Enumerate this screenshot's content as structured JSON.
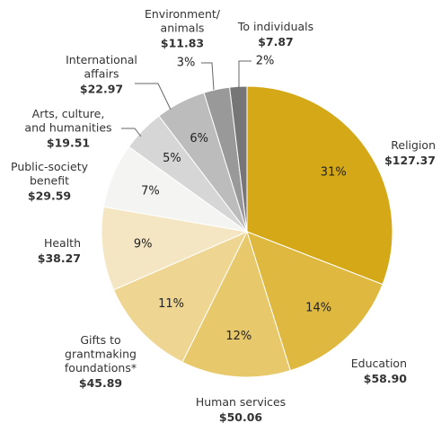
{
  "chart_data": {
    "type": "pie",
    "categories": [
      [
        "Religion"
      ],
      [
        "Education"
      ],
      [
        "Human services"
      ],
      [
        "Gifts to",
        "grantmaking",
        "foundations*"
      ],
      [
        "Health"
      ],
      [
        "Public-society",
        "benefit"
      ],
      [
        "Arts, culture,",
        "and humanities"
      ],
      [
        "International",
        "affairs"
      ],
      [
        "Environment/",
        "animals"
      ],
      [
        "To individuals"
      ]
    ],
    "values": [
      127.37,
      58.9,
      50.06,
      45.89,
      38.27,
      29.59,
      19.51,
      22.97,
      11.83,
      7.87
    ],
    "value_labels": [
      "$127.37",
      "$58.90",
      "$50.06",
      "$45.89",
      "$38.27",
      "$29.59",
      "$19.51",
      "$22.97",
      "$11.83",
      "$7.87"
    ],
    "percent_labels": [
      "31%",
      "14%",
      "12%",
      "11%",
      "9%",
      "7%",
      "5%",
      "6%",
      "3%",
      "2%"
    ],
    "colors": [
      "#d4a817",
      "#dfb83f",
      "#e7c86b",
      "#eed592",
      "#f5e6c3",
      "#f4f4f3",
      "#d6d6d6",
      "#bcbcbc",
      "#999999",
      "#767676"
    ]
  }
}
